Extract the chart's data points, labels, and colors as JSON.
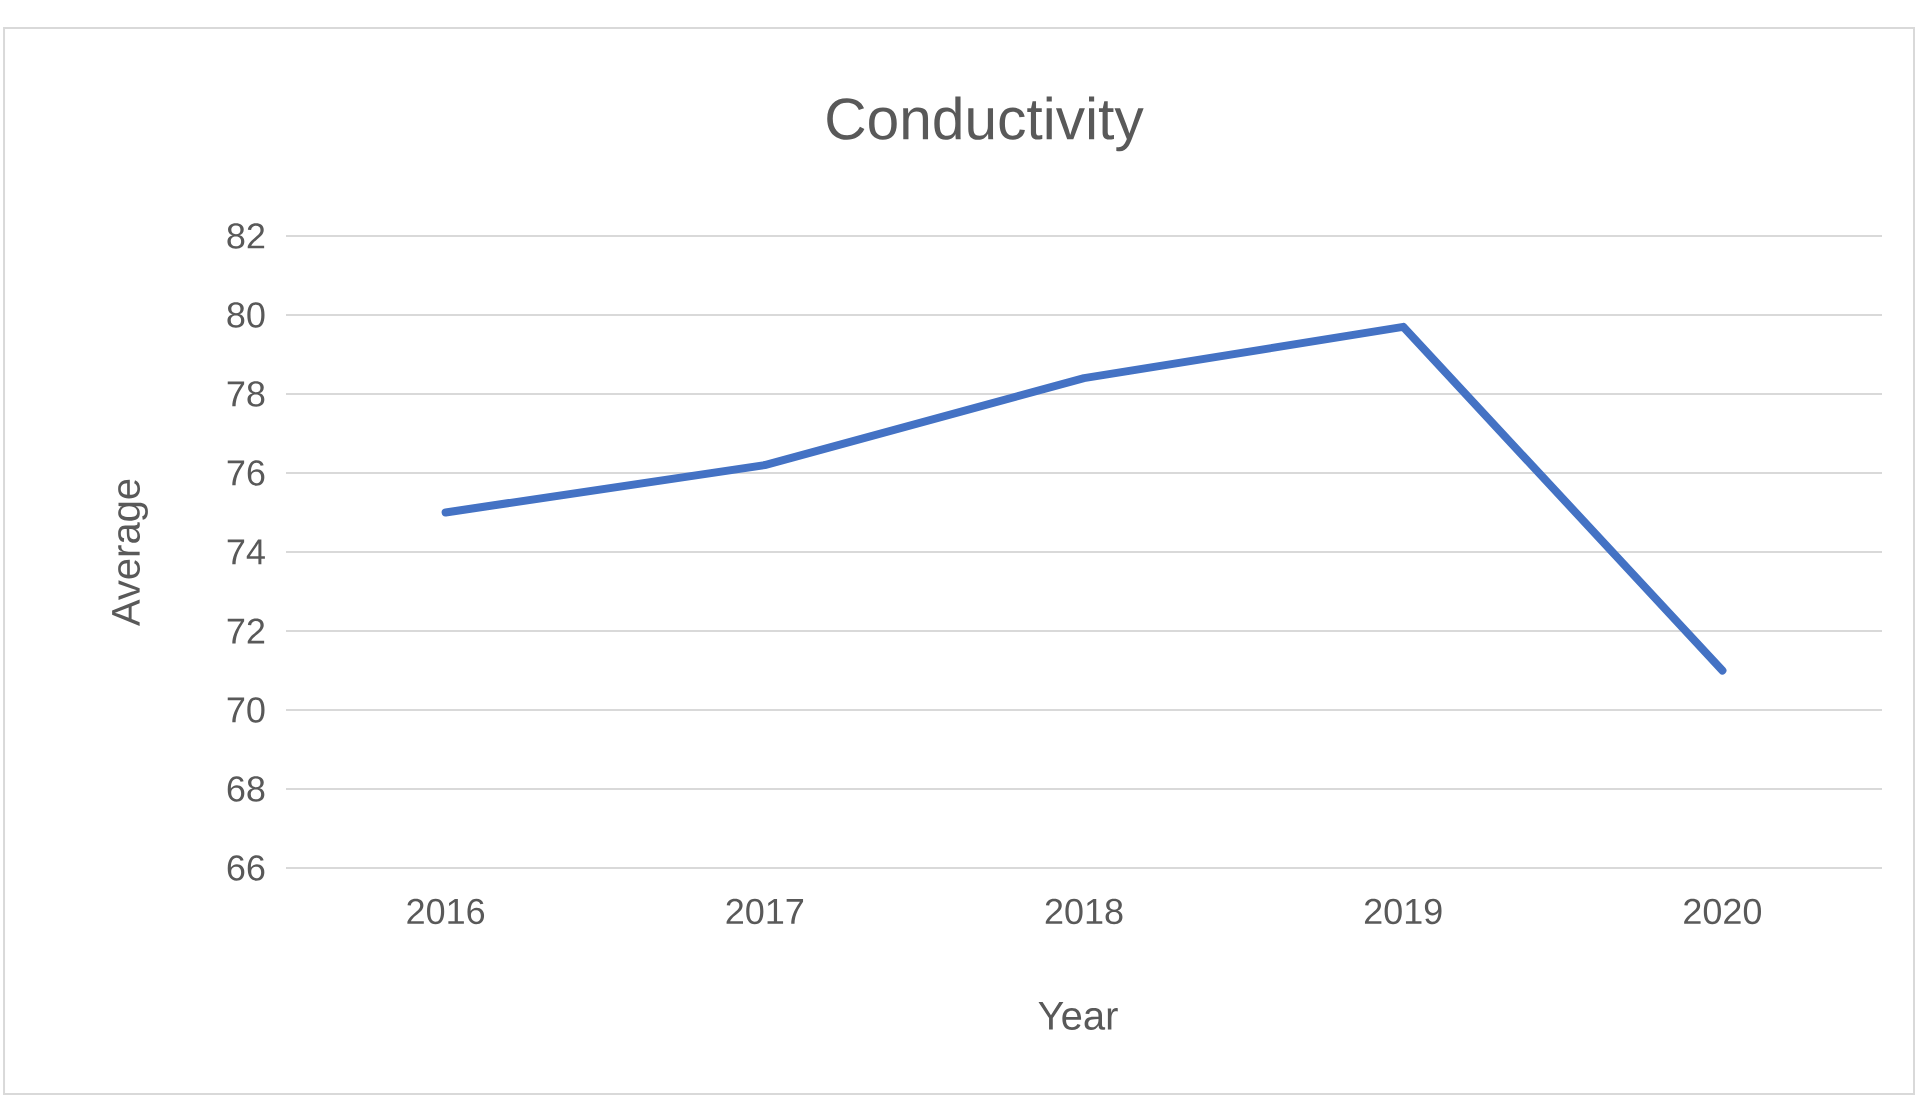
{
  "chart_data": {
    "type": "line",
    "title": "Conductivity",
    "xlabel": "Year",
    "ylabel": "Average",
    "categories": [
      "2016",
      "2017",
      "2018",
      "2019",
      "2020"
    ],
    "series": [
      {
        "color": "#4472c4",
        "values": [
          75.0,
          76.2,
          78.4,
          79.7,
          71.0
        ]
      }
    ],
    "ylim": [
      66,
      82
    ],
    "yticks": [
      66,
      68,
      70,
      72,
      74,
      76,
      78,
      80,
      82
    ],
    "grid": "y",
    "marker": "none",
    "line_style": "solid"
  }
}
